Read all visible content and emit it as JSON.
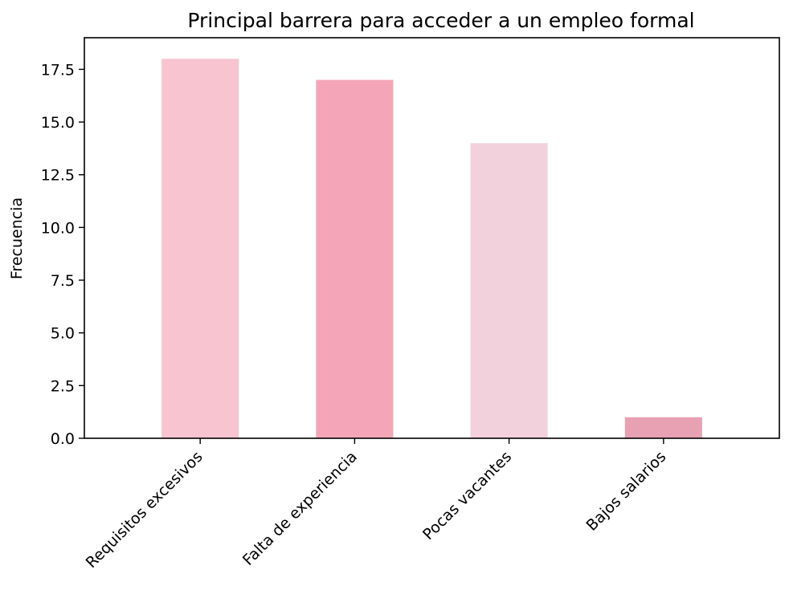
{
  "chart_data": {
    "type": "bar",
    "title": "Principal barrera para acceder a un empleo formal",
    "xlabel": "",
    "ylabel": "Frecuencia",
    "categories": [
      "Requisitos excesivos",
      "Falta de experiencia",
      "Pocas vacantes",
      "Bajos salarios"
    ],
    "values": [
      18,
      17,
      14,
      1
    ],
    "colors": [
      "#f7c4d0",
      "#f4a6b8",
      "#f2d1dc",
      "#e8a1b3"
    ],
    "ylim": [
      0,
      19
    ],
    "yticks": [
      0.0,
      2.5,
      5.0,
      7.5,
      10.0,
      12.5,
      15.0,
      17.5
    ],
    "ytick_labels": [
      "0.0",
      "2.5",
      "5.0",
      "7.5",
      "10.0",
      "12.5",
      "15.0",
      "17.5"
    ],
    "grid": false,
    "legend": "none"
  }
}
